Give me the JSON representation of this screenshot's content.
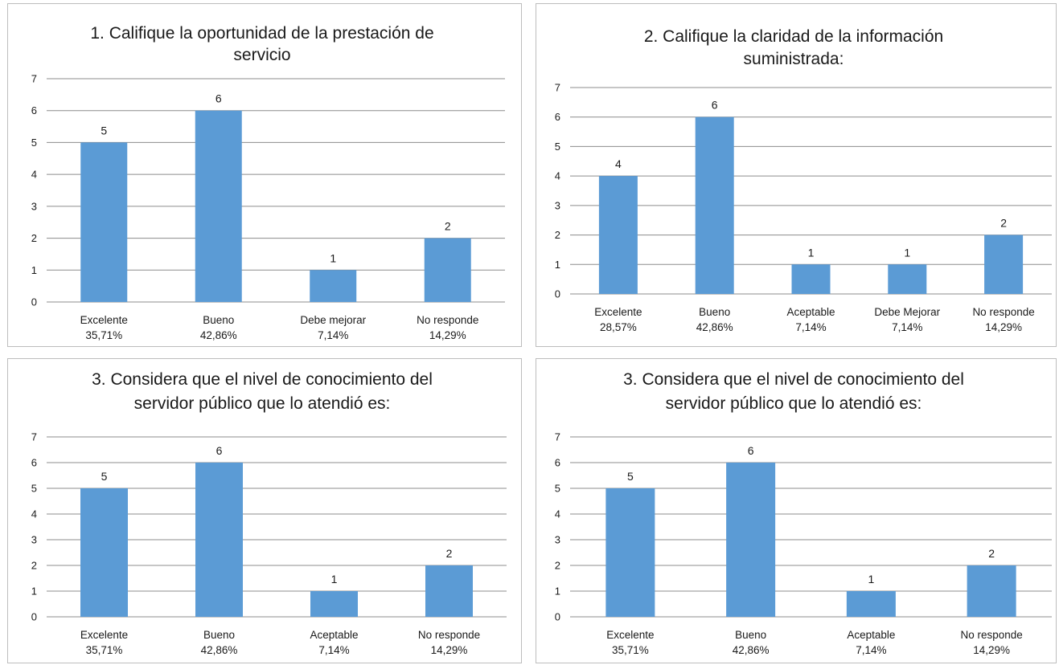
{
  "colors": {
    "bar": "#5b9bd5",
    "grid": "#8c8c8c",
    "text": "#1a1a1a"
  },
  "chart_data": [
    {
      "type": "bar",
      "title": [
        "1. Califique la oportunidad de la prestación de",
        "servicio"
      ],
      "categories": [
        "Excelente",
        "Bueno",
        "Debe mejorar",
        "No responde"
      ],
      "category_percentages": [
        "35,71%",
        "42,86%",
        "7,14%",
        "14,29%"
      ],
      "values": [
        5,
        6,
        1,
        2
      ],
      "ylim": [
        0,
        7
      ],
      "yticks": [
        "0",
        "1",
        "2",
        "3",
        "4",
        "5",
        "6",
        "7"
      ],
      "grid": true
    },
    {
      "type": "bar",
      "title": [
        "2. Califique la claridad de la información",
        "suministrada:"
      ],
      "categories": [
        "Excelente",
        "Bueno",
        "Aceptable",
        "Debe Mejorar",
        "No responde"
      ],
      "category_percentages": [
        "28,57%",
        "42,86%",
        "7,14%",
        "7,14%",
        "14,29%"
      ],
      "values": [
        4,
        6,
        1,
        1,
        2
      ],
      "ylim": [
        0,
        7
      ],
      "yticks": [
        "0",
        "1",
        "2",
        "3",
        "4",
        "5",
        "6",
        "7"
      ],
      "grid": true
    },
    {
      "type": "bar",
      "title": [
        "3. Considera que el nivel de conocimiento del",
        "servidor público que lo atendió es:"
      ],
      "categories": [
        "Excelente",
        "Bueno",
        "Aceptable",
        "No responde"
      ],
      "category_percentages": [
        "35,71%",
        "42,86%",
        "7,14%",
        "14,29%"
      ],
      "values": [
        5,
        6,
        1,
        2
      ],
      "ylim": [
        0,
        7
      ],
      "yticks": [
        "0",
        "1",
        "2",
        "3",
        "4",
        "5",
        "6",
        "7"
      ],
      "grid": true
    },
    {
      "type": "bar",
      "title": [
        "3. Considera que el nivel de conocimiento del",
        "servidor público que lo atendió es:"
      ],
      "categories": [
        "Excelente",
        "Bueno",
        "Aceptable",
        "No responde"
      ],
      "category_percentages": [
        "35,71%",
        "42,86%",
        "7,14%",
        "14,29%"
      ],
      "values": [
        5,
        6,
        1,
        2
      ],
      "ylim": [
        0,
        7
      ],
      "yticks": [
        "0",
        "1",
        "2",
        "3",
        "4",
        "5",
        "6",
        "7"
      ],
      "grid": true
    }
  ]
}
